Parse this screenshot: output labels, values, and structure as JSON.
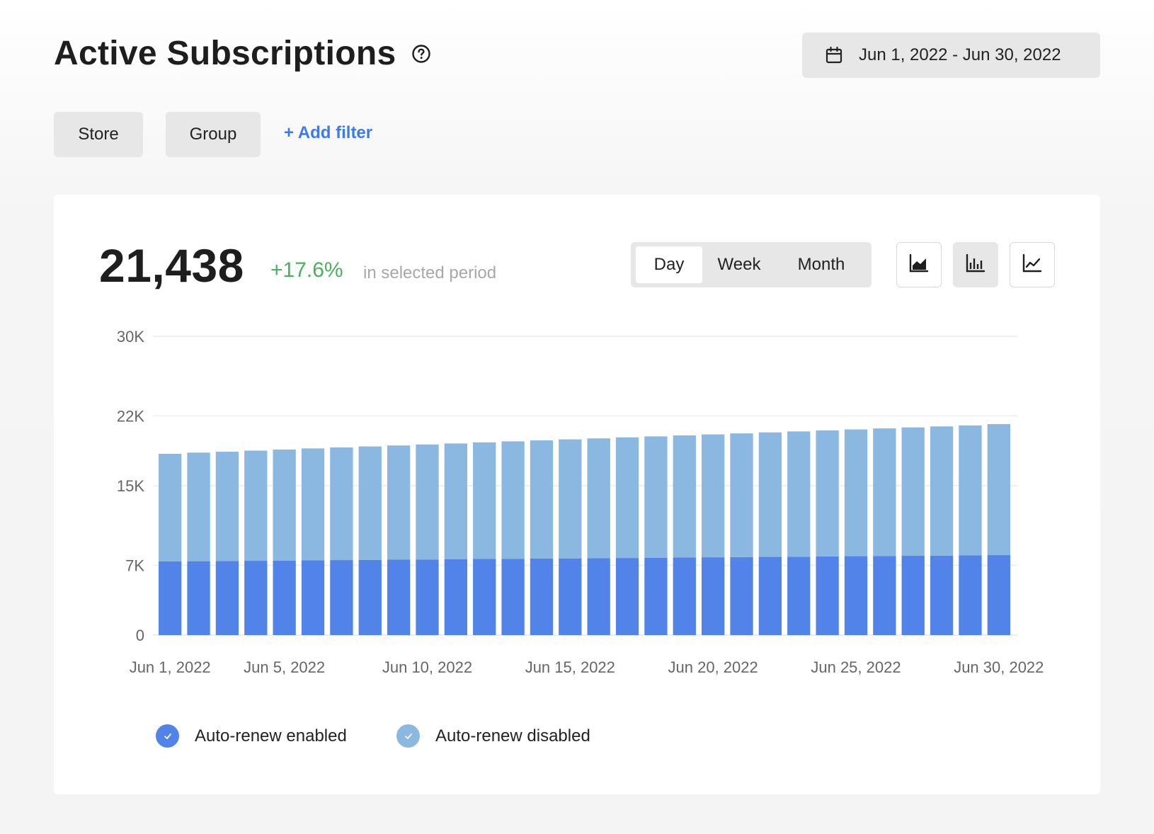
{
  "header": {
    "title": "Active Subscriptions",
    "date_range": "Jun 1, 2022 - Jun 30, 2022"
  },
  "filters": {
    "store_label": "Store",
    "group_label": "Group",
    "add_filter_label": "+ Add filter"
  },
  "summary": {
    "total": "21,438",
    "delta": "+17.6%",
    "period_note": "in selected period"
  },
  "granularity": {
    "options": [
      "Day",
      "Week",
      "Month"
    ],
    "selected": "Day"
  },
  "chart_types": {
    "options": [
      "area-chart-icon",
      "bar-chart-icon",
      "line-chart-icon"
    ],
    "selected": "bar-chart-icon"
  },
  "colors": {
    "enabled": "#5183e8",
    "disabled": "#8ab8e0",
    "positive": "#4cb05c",
    "link": "#3f7ae6"
  },
  "chart_data": {
    "type": "bar",
    "stacked": true,
    "x": [
      "Jun 1, 2022",
      "Jun 2, 2022",
      "Jun 3, 2022",
      "Jun 4, 2022",
      "Jun 5, 2022",
      "Jun 6, 2022",
      "Jun 7, 2022",
      "Jun 8, 2022",
      "Jun 9, 2022",
      "Jun 10, 2022",
      "Jun 11, 2022",
      "Jun 12, 2022",
      "Jun 13, 2022",
      "Jun 14, 2022",
      "Jun 15, 2022",
      "Jun 16, 2022",
      "Jun 17, 2022",
      "Jun 18, 2022",
      "Jun 19, 2022",
      "Jun 20, 2022",
      "Jun 21, 2022",
      "Jun 22, 2022",
      "Jun 23, 2022",
      "Jun 24, 2022",
      "Jun 25, 2022",
      "Jun 26, 2022",
      "Jun 27, 2022",
      "Jun 28, 2022",
      "Jun 29, 2022",
      "Jun 30, 2022"
    ],
    "x_tick_labels": [
      "Jun 1, 2022",
      "Jun 5, 2022",
      "Jun 10, 2022",
      "Jun 15, 2022",
      "Jun 20, 2022",
      "Jun 25, 2022",
      "Jun 30, 2022"
    ],
    "x_tick_indices": [
      0,
      4,
      9,
      14,
      19,
      24,
      29
    ],
    "y_ticks": [
      0,
      7000,
      15000,
      22000,
      30000
    ],
    "y_tick_labels": [
      "0",
      "7K",
      "15K",
      "22K",
      "30K"
    ],
    "ylim": [
      0,
      30000
    ],
    "grid": true,
    "legend_position": "bottom-left",
    "series": [
      {
        "name": "Auto-renew enabled",
        "values": [
          7400,
          7420,
          7440,
          7460,
          7480,
          7510,
          7530,
          7550,
          7570,
          7590,
          7610,
          7640,
          7660,
          7680,
          7700,
          7720,
          7740,
          7770,
          7790,
          7810,
          7830,
          7850,
          7870,
          7900,
          7920,
          7940,
          7960,
          7980,
          8000,
          8030
        ]
      },
      {
        "name": "Auto-renew disabled",
        "values": [
          10800,
          10900,
          10970,
          11060,
          11150,
          11230,
          11310,
          11390,
          11470,
          11550,
          11630,
          11710,
          11790,
          11870,
          11950,
          12030,
          12110,
          12180,
          12260,
          12340,
          12420,
          12500,
          12580,
          12650,
          12730,
          12810,
          12890,
          12970,
          13050,
          13150
        ]
      }
    ]
  }
}
